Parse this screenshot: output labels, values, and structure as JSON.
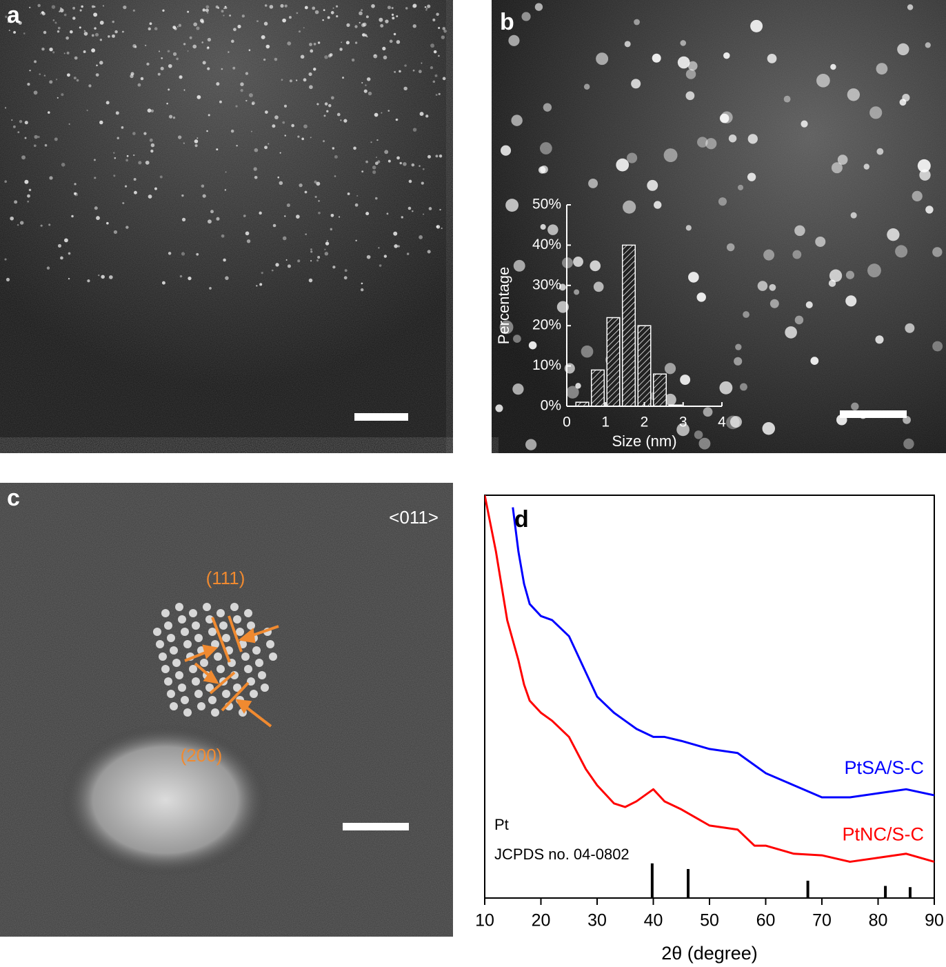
{
  "panel_labels": [
    "a",
    "b",
    "c"
  ],
  "c_annotations": {
    "zone_axis": "<011>",
    "plane_1": "(111)",
    "plane_2": "(200)"
  },
  "chart_data": [
    {
      "type": "histogram",
      "xlabel": "Size (nm)",
      "ylabel": "Percentage",
      "bins": [
        0.2,
        0.6,
        1.0,
        1.4,
        1.8,
        2.2,
        2.6,
        3.0,
        3.4,
        3.8
      ],
      "values": [
        1,
        9,
        22,
        40,
        20,
        8,
        0.3,
        0,
        0
      ],
      "xlim": [
        0,
        4
      ],
      "xticks": [
        0,
        1,
        2,
        3,
        4
      ],
      "ylim": [
        0,
        50
      ],
      "yticks": [
        {
          "value": 0,
          "label": "0%"
        },
        {
          "value": 10,
          "label": "10%"
        },
        {
          "value": 20,
          "label": "20%"
        },
        {
          "value": 30,
          "label": "30%"
        },
        {
          "value": 40,
          "label": "40%"
        },
        {
          "value": 50,
          "label": "50%"
        }
      ]
    },
    {
      "type": "line",
      "panel_label": "d",
      "xlabel": "2θ (degree)",
      "x": [
        10,
        12,
        14,
        15,
        16,
        17,
        18,
        20,
        22,
        25,
        28,
        30,
        33,
        35,
        37,
        40,
        42,
        45,
        50,
        55,
        58,
        60,
        65,
        70,
        75,
        80,
        85,
        90
      ],
      "series": [
        {
          "name": "PtSA/S-C",
          "color": "#0000ff",
          "values": [
            null,
            null,
            null,
            97,
            86,
            78,
            73,
            70,
            69,
            65,
            56,
            50,
            46,
            44,
            42,
            40,
            40,
            39,
            37,
            36,
            33,
            31,
            28,
            25,
            25,
            26,
            27,
            25.5
          ]
        },
        {
          "name": "PtNC/S-C",
          "color": "#ff0000",
          "values": [
            100,
            86,
            69,
            64,
            59,
            53,
            49,
            46,
            44,
            40,
            32,
            28,
            23.5,
            22.6,
            24,
            27,
            24,
            22,
            18,
            17,
            13,
            13,
            11,
            10.6,
            9,
            10,
            11,
            9
          ]
        }
      ],
      "reference": {
        "name": "Pt",
        "source": "JCPDS no. 04-0802",
        "positions": [
          39.8,
          46.2,
          67.5,
          81.3,
          85.7
        ],
        "values": [
          8.6,
          7.2,
          4.3,
          3,
          2.7
        ]
      },
      "xlim": [
        10,
        90
      ],
      "xticks": [
        10,
        20,
        30,
        40,
        50,
        60,
        70,
        80,
        90
      ],
      "ylim": [
        0,
        100
      ]
    }
  ]
}
